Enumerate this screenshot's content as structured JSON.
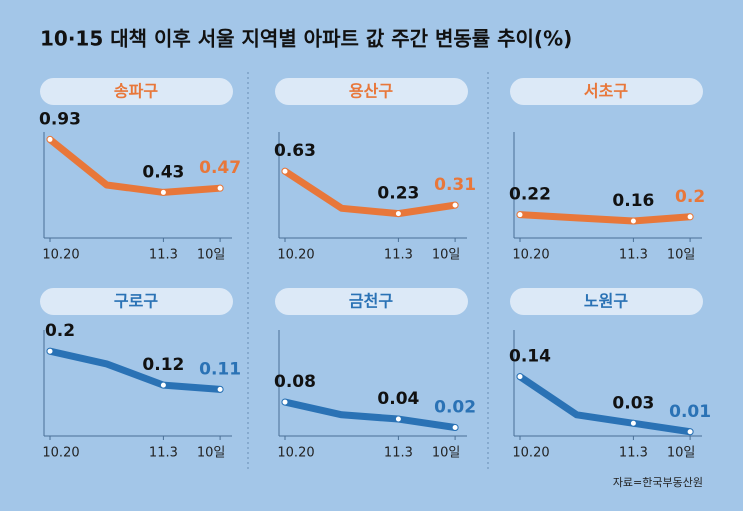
{
  "title": "10·15 대책 이후 서울 지역별 아파트 값 주간 변동률 추이(%)",
  "source": "자료=한국부동산원",
  "chart_data": [
    {
      "type": "line",
      "title": "송파구",
      "categories": [
        "10.20",
        null,
        "11.3",
        "10일"
      ],
      "values": [
        0.93,
        0.5,
        0.43,
        0.47
      ],
      "color": "#e8773a",
      "ylim": [
        0,
        1
      ]
    },
    {
      "type": "line",
      "title": "용산구",
      "categories": [
        "10.20",
        null,
        "11.3",
        "10일"
      ],
      "values": [
        0.63,
        0.28,
        0.23,
        0.31
      ],
      "color": "#e8773a",
      "ylim": [
        0,
        1
      ]
    },
    {
      "type": "line",
      "title": "서초구",
      "categories": [
        "10.20",
        null,
        "11.3",
        "10일"
      ],
      "values": [
        0.22,
        0.19,
        0.16,
        0.2
      ],
      "color": "#e8773a",
      "ylim": [
        0,
        1
      ]
    },
    {
      "type": "line",
      "title": "구로구",
      "categories": [
        "10.20",
        null,
        "11.3",
        "10일"
      ],
      "values": [
        0.2,
        0.17,
        0.12,
        0.11
      ],
      "color": "#2a72b5",
      "ylim": [
        0,
        0.25
      ]
    },
    {
      "type": "line",
      "title": "금천구",
      "categories": [
        "10.20",
        null,
        "11.3",
        "10일"
      ],
      "values": [
        0.08,
        0.05,
        0.04,
        0.02
      ],
      "color": "#2a72b5",
      "ylim": [
        0,
        0.25
      ]
    },
    {
      "type": "line",
      "title": "노원구",
      "categories": [
        "10.20",
        null,
        "11.3",
        "10일"
      ],
      "values": [
        0.14,
        0.05,
        0.03,
        0.01
      ],
      "color": "#2a72b5",
      "ylim": [
        0,
        0.25
      ]
    }
  ]
}
